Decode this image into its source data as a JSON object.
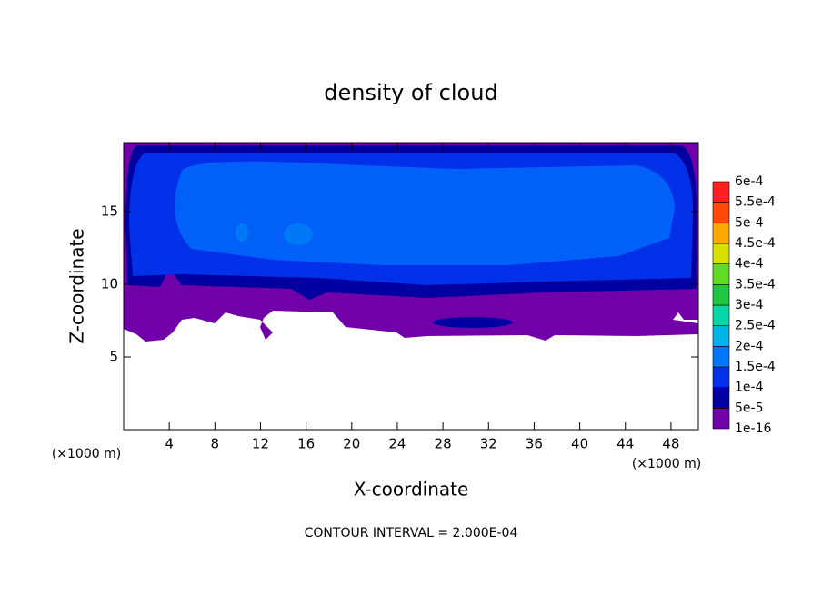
{
  "chart_data": {
    "type": "contour",
    "title": "density of cloud",
    "x_label": "X-coordinate",
    "y_label": "Z-coordinate",
    "x_unit": "(×1000 m)",
    "y_unit": "(×1000 m)",
    "footnote": "CONTOUR INTERVAL = 2.000E-04",
    "xlim": [
      0,
      50.4
    ],
    "ylim": [
      0,
      19.75
    ],
    "xticks": [
      4,
      8,
      12,
      16,
      20,
      24,
      28,
      32,
      36,
      40,
      44,
      48
    ],
    "yticks": [
      5,
      10,
      15
    ],
    "levels": [
      {
        "value": 1e-16,
        "label": "1e-16"
      },
      {
        "value": 5e-05,
        "label": "5e-5"
      },
      {
        "value": 0.0001,
        "label": "1e-4"
      },
      {
        "value": 0.00015,
        "label": "1.5e-4"
      },
      {
        "value": 0.0002,
        "label": "2e-4"
      },
      {
        "value": 0.00025,
        "label": "2.5e-4"
      },
      {
        "value": 0.0003,
        "label": "3e-4"
      },
      {
        "value": 0.00035,
        "label": "3.5e-4"
      },
      {
        "value": 0.0004,
        "label": "4e-4"
      },
      {
        "value": 0.00045,
        "label": "4.5e-4"
      },
      {
        "value": 0.0005,
        "label": "5e-4"
      },
      {
        "value": 0.00055,
        "label": "5.5e-4"
      },
      {
        "value": 0.0006,
        "label": "6e-4"
      }
    ],
    "level_colors": [
      "#7000a8",
      "#0000a0",
      "#0030e8",
      "#0078f8",
      "#00b4e8",
      "#00d8a8",
      "#20c840",
      "#60dc20",
      "#d8e000",
      "#ffa800",
      "#ff4800",
      "#ff2020"
    ]
  }
}
